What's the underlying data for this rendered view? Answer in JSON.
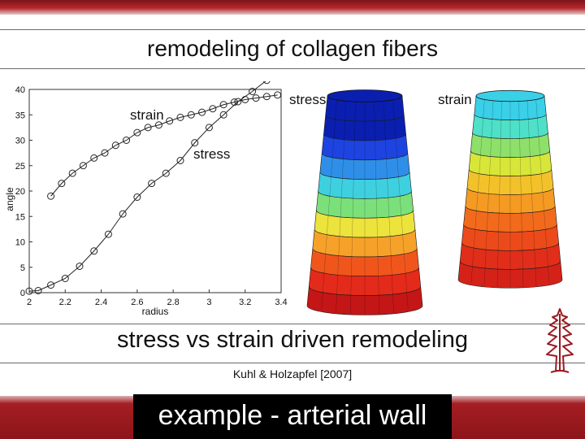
{
  "title": "remodeling of collagen fibers",
  "subtitle": "stress vs strain driven remodeling",
  "citation": "Kuhl & Holzapfel [2007]",
  "footer": "example - arterial wall",
  "plot_labels": {
    "strain": "strain",
    "stress": "stress"
  },
  "cylinder_labels": {
    "left": "stress",
    "right": "strain"
  },
  "colors": {
    "brand_red": "#a51e23",
    "footer_bg": "#000000"
  },
  "chart_data": {
    "type": "line",
    "title": "",
    "xlabel": "radius",
    "ylabel": "angle",
    "xlim": [
      2,
      3.4
    ],
    "ylim": [
      0,
      40
    ],
    "xticks": [
      2,
      2.2,
      2.4,
      2.6,
      2.8,
      3,
      3.2,
      3.4
    ],
    "yticks": [
      0,
      5,
      10,
      15,
      20,
      25,
      30,
      35,
      40
    ],
    "grid": false,
    "series": [
      {
        "name": "strain",
        "x": [
          2.12,
          2.18,
          2.24,
          2.3,
          2.36,
          2.42,
          2.48,
          2.54,
          2.6,
          2.66,
          2.72,
          2.78,
          2.84,
          2.9,
          2.96,
          3.02,
          3.08,
          3.14,
          3.2,
          3.26,
          3.32,
          3.38
        ],
        "y": [
          19,
          21.5,
          23.5,
          25,
          26.5,
          27.5,
          29,
          30,
          31.5,
          32.5,
          33,
          33.8,
          34.5,
          35,
          35.5,
          36.2,
          37,
          37.5,
          38,
          38.3,
          38.6,
          38.9
        ]
      },
      {
        "name": "stress",
        "x": [
          2.0,
          2.05,
          2.12,
          2.2,
          2.28,
          2.36,
          2.44,
          2.52,
          2.6,
          2.68,
          2.76,
          2.84,
          2.92,
          3.0,
          3.08,
          3.16,
          3.24,
          3.32,
          3.38
        ],
        "y": [
          0.3,
          0.4,
          1.5,
          2.8,
          5.2,
          8.2,
          11.5,
          15.5,
          18.8,
          21.5,
          23.5,
          26,
          29.5,
          32.5,
          35,
          37.6,
          39.6,
          41.8,
          43
        ]
      }
    ]
  }
}
